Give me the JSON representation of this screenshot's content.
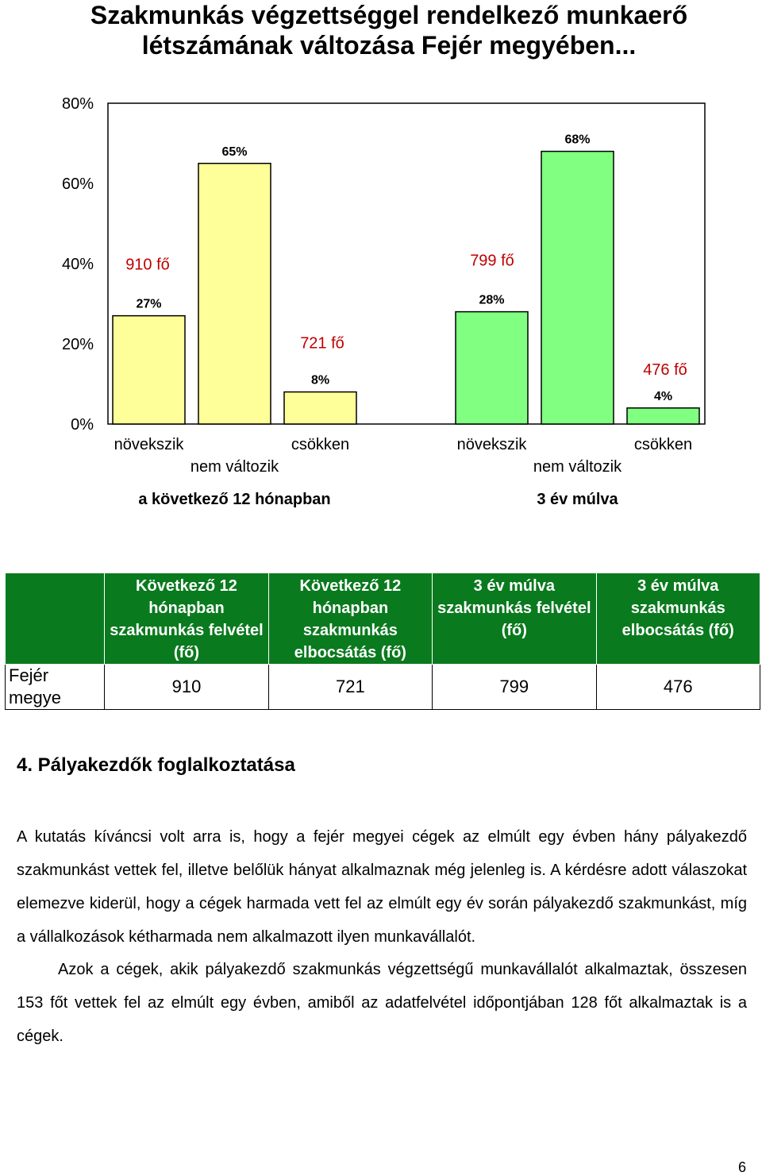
{
  "title": "Szakmunkás végzettséggel rendelkező munkaerő létszámának változása Fejér megyében...",
  "chart_data": {
    "type": "bar",
    "y_ticks": [
      "80%",
      "60%",
      "40%",
      "20%",
      "0%"
    ],
    "ylim": [
      0,
      80
    ],
    "grid": false,
    "groups": [
      {
        "label": "a következő 12 hónapban",
        "color": "#ffff99",
        "categories": [
          "növekszik",
          "nem változik",
          "csökken"
        ],
        "values": [
          27,
          65,
          8
        ],
        "value_labels": [
          "27%",
          "65%",
          "8%"
        ]
      },
      {
        "label": "3 év múlva",
        "color": "#80ff80",
        "categories": [
          "növekszik",
          "nem változik",
          "csökken"
        ],
        "values": [
          28,
          68,
          4
        ],
        "value_labels": [
          "28%",
          "68%",
          "4%"
        ]
      }
    ],
    "annotations": [
      "910 fő",
      "721 fő",
      "799 fő",
      "476 fő"
    ],
    "annotation_color": "#c00000"
  },
  "table": {
    "headers": [
      "",
      "Következő 12 hónapban szakmunkás felvétel (fő)",
      "Következő 12 hónapban szakmunkás elbocsátás (fő)",
      "3 év múlva szakmunkás felvétel (fő)",
      "3 év múlva szakmunkás elbocsátás (fő)"
    ],
    "rows": [
      [
        "Fejér megye",
        "910",
        "721",
        "799",
        "476"
      ]
    ]
  },
  "section_heading": "4. Pályakezdők foglalkoztatása",
  "paragraphs": [
    "A kutatás kíváncsi volt arra is, hogy a fejér megyei cégek az elmúlt egy évben hány pályakezdő szakmunkást vettek fel, illetve belőlük hányat alkalmaznak még jelenleg is. A kérdésre adott válaszokat elemezve kiderül, hogy a cégek harmada vett fel az elmúlt egy év során pályakezdő szakmunkást, míg a vállalkozások kétharmada nem alkalmazott ilyen munkavállalót.",
    "Azok a cégek, akik pályakezdő szakmunkás végzettségű munkavállalót alkalmaztak, összesen 153 főt vettek fel az elmúlt egy évben, amiből az adatfelvétel időpontjában 128 főt alkalmaztak is a cégek."
  ],
  "page_number": "6"
}
